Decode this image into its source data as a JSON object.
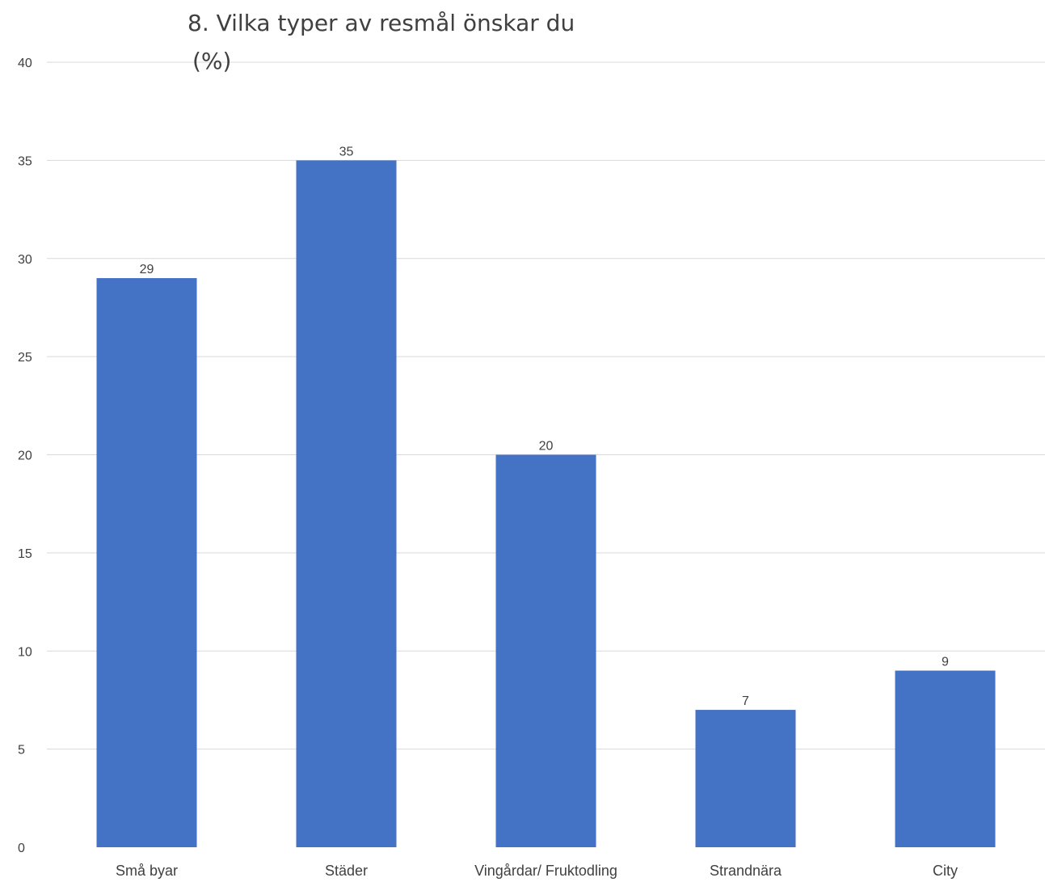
{
  "chart_data": {
    "type": "bar",
    "title_lines": [
      "8. Vilka typer av resmål önskar du",
      "(%)"
    ],
    "categories": [
      "Små byar",
      "Städer",
      "Vingårdar/ Fruktodling",
      "Strandnära",
      "City"
    ],
    "values": [
      29,
      35,
      20,
      7,
      9
    ],
    "data_labels": [
      "29",
      "35",
      "20",
      "7",
      "9"
    ],
    "ylim": [
      0,
      40
    ],
    "yticks": [
      0,
      5,
      10,
      15,
      20,
      25,
      30,
      35,
      40
    ],
    "grid": true,
    "legend": "none",
    "bar_color": "#4472c4"
  }
}
